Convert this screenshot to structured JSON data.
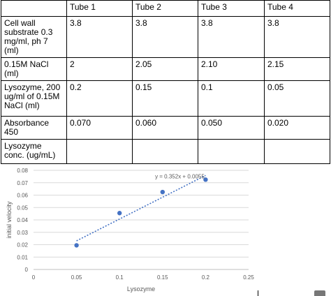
{
  "table": {
    "columns": [
      "",
      "Tube 1",
      "Tube 2",
      "Tube 3",
      "Tube 4"
    ],
    "rows": [
      {
        "label": "Cell wall substrate 0.3 mg/ml, ph 7 (ml)",
        "values": [
          "3.8",
          "3.8",
          "3.8",
          "3.8"
        ]
      },
      {
        "label": "0.15M NaCl (ml)",
        "values": [
          "2",
          "2.05",
          "2.10",
          "2.15"
        ]
      },
      {
        "label": "Lysozyme, 200 ug/ml of 0.15M NaCl (ml)",
        "values": [
          "0.2",
          "0.15",
          "0.1",
          "0.05"
        ]
      },
      {
        "label": "Absorbance 450",
        "values": [
          "0.070",
          "0.060",
          "0.050",
          "0.020"
        ]
      },
      {
        "label": "Lysozyme conc. (ug/mL)",
        "values": [
          "",
          "",
          "",
          ""
        ]
      }
    ]
  },
  "chart_data": {
    "type": "scatter",
    "xlabel": "Lysozyme",
    "ylabel": "initial velocity",
    "xlim": [
      0,
      0.25
    ],
    "ylim": [
      0,
      0.08
    ],
    "x_ticks": [
      "0",
      "0.05",
      "0.1",
      "0.15",
      "0.2",
      "0.25"
    ],
    "y_ticks": [
      "0",
      "0.01",
      "0.02",
      "0.03",
      "0.04",
      "0.05",
      "0.06",
      "0.07",
      "0.08"
    ],
    "grid": "horizontal",
    "points": [
      {
        "x": 0.05,
        "y": 0.0195
      },
      {
        "x": 0.1,
        "y": 0.0455
      },
      {
        "x": 0.15,
        "y": 0.0625
      },
      {
        "x": 0.2,
        "y": 0.0725
      }
    ],
    "trendline": {
      "slope": 0.352,
      "intercept": 0.0055,
      "x_range": [
        0.05,
        0.2
      ],
      "label": "y = 0.352x + 0.0055"
    },
    "colors": {
      "marker": "#4472c4",
      "trendline": "#4472c4",
      "grid": "#d9d9d9"
    }
  }
}
